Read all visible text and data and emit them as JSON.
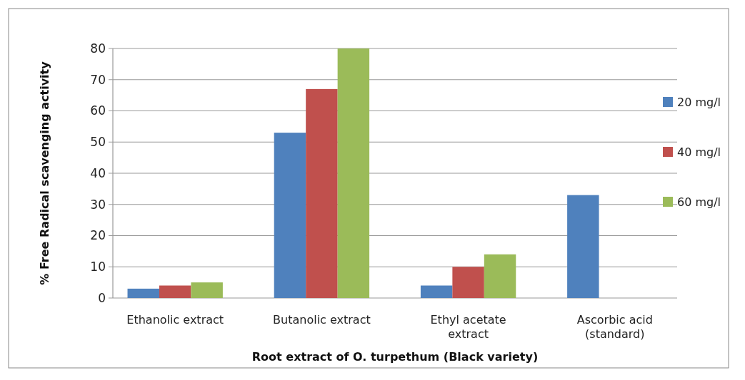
{
  "chart_data": {
    "type": "bar",
    "ylabel": "% Free Radical scavenging activity",
    "xlabel": "Root extract of O. turpethum (Black variety)",
    "categories": [
      "Ethanolic extract",
      "Butanolic extract",
      "Ethyl acetate extract",
      "Ascorbic acid (standard)"
    ],
    "series": [
      {
        "name": "20 mg/l",
        "color": "#4f81bd",
        "values": [
          3,
          53,
          4,
          33
        ]
      },
      {
        "name": "40 mg/l",
        "color": "#c0504d",
        "values": [
          4,
          67,
          10,
          null
        ]
      },
      {
        "name": "60 mg/l",
        "color": "#9bbb59",
        "values": [
          5,
          80,
          14,
          null
        ]
      }
    ],
    "ylim": [
      0,
      80
    ],
    "yticks": [
      0,
      10,
      20,
      30,
      40,
      50,
      60,
      70,
      80
    ],
    "grid": "y",
    "legend": "right"
  }
}
